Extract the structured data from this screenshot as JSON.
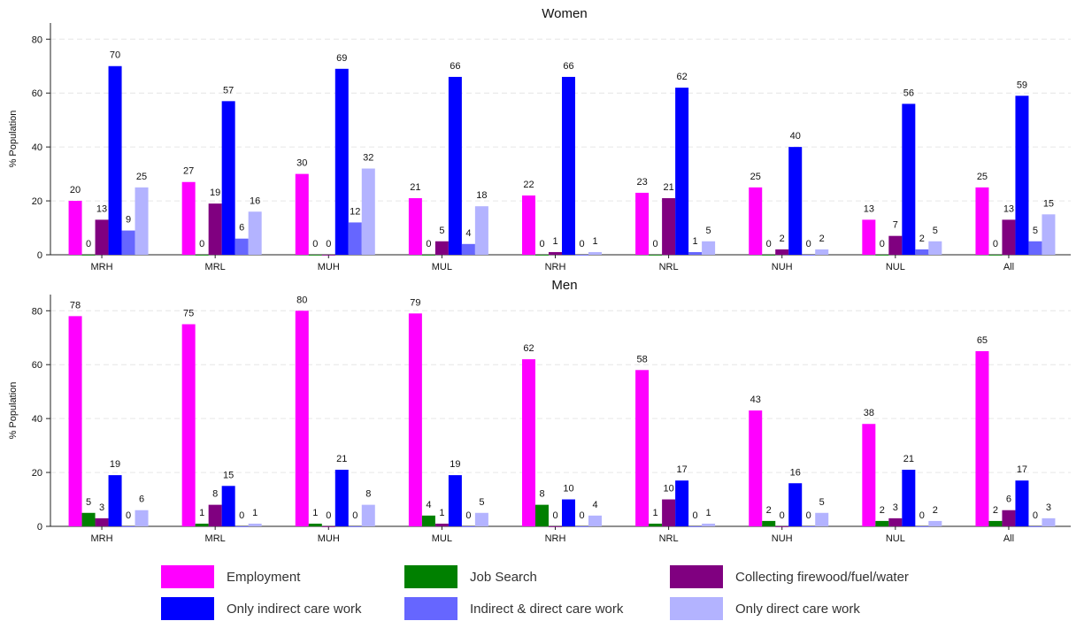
{
  "chart_data": [
    {
      "type": "bar",
      "title": "Women",
      "ylabel": "% Population",
      "xlabel": "",
      "ylim": [
        0,
        86
      ],
      "yticks": [
        0,
        20,
        40,
        60,
        80
      ],
      "grid": true,
      "categories": [
        "MRH",
        "MRL",
        "MUH",
        "MUL",
        "NRH",
        "NRL",
        "NUH",
        "NUL",
        "All"
      ],
      "series": [
        {
          "name": "Employment",
          "color": "#FF00FF",
          "values": [
            20,
            27,
            30,
            21,
            22,
            23,
            25,
            13,
            25
          ]
        },
        {
          "name": "Job Search",
          "color": "#008000",
          "values": [
            0,
            0,
            0,
            0,
            0,
            0,
            0,
            0,
            0
          ]
        },
        {
          "name": "Collecting firewood/fuel/water",
          "color": "#800080",
          "values": [
            13,
            19,
            0,
            5,
            1,
            21,
            2,
            7,
            13
          ]
        },
        {
          "name": "Only indirect care work",
          "color": "#0000FF",
          "values": [
            70,
            57,
            69,
            66,
            66,
            62,
            40,
            56,
            59
          ]
        },
        {
          "name": "Indirect & direct care work",
          "color": "#6666FF",
          "values": [
            9,
            6,
            12,
            4,
            0,
            1,
            0,
            2,
            5
          ]
        },
        {
          "name": "Only direct care work",
          "color": "#B3B3FF",
          "values": [
            25,
            16,
            32,
            18,
            1,
            5,
            2,
            5,
            15
          ]
        }
      ]
    },
    {
      "type": "bar",
      "title": "Men",
      "ylabel": "% Population",
      "xlabel": "",
      "ylim": [
        0,
        86
      ],
      "yticks": [
        0,
        20,
        40,
        60,
        80
      ],
      "grid": true,
      "categories": [
        "MRH",
        "MRL",
        "MUH",
        "MUL",
        "NRH",
        "NRL",
        "NUH",
        "NUL",
        "All"
      ],
      "series": [
        {
          "name": "Employment",
          "color": "#FF00FF",
          "values": [
            78,
            75,
            80,
            79,
            62,
            58,
            43,
            38,
            65
          ]
        },
        {
          "name": "Job Search",
          "color": "#008000",
          "values": [
            5,
            1,
            1,
            4,
            8,
            1,
            2,
            2,
            2
          ]
        },
        {
          "name": "Collecting firewood/fuel/water",
          "color": "#800080",
          "values": [
            3,
            8,
            0,
            1,
            0,
            10,
            0,
            3,
            6
          ]
        },
        {
          "name": "Only indirect care work",
          "color": "#0000FF",
          "values": [
            19,
            15,
            21,
            19,
            10,
            17,
            16,
            21,
            17
          ]
        },
        {
          "name": "Indirect & direct care work",
          "color": "#6666FF",
          "values": [
            0,
            0,
            0,
            0,
            0,
            0,
            0,
            0,
            0
          ]
        },
        {
          "name": "Only direct care work",
          "color": "#B3B3FF",
          "values": [
            6,
            1,
            8,
            5,
            4,
            1,
            5,
            2,
            3
          ]
        }
      ]
    }
  ],
  "legend": {
    "position": "bottom",
    "items": [
      {
        "label": "Employment",
        "color": "#FF00FF"
      },
      {
        "label": "Job Search",
        "color": "#008000"
      },
      {
        "label": "Collecting firewood/fuel/water",
        "color": "#800080"
      },
      {
        "label": "Only indirect care work",
        "color": "#0000FF"
      },
      {
        "label": "Indirect & direct care work",
        "color": "#6666FF"
      },
      {
        "label": "Only direct care work",
        "color": "#B3B3FF"
      }
    ]
  }
}
